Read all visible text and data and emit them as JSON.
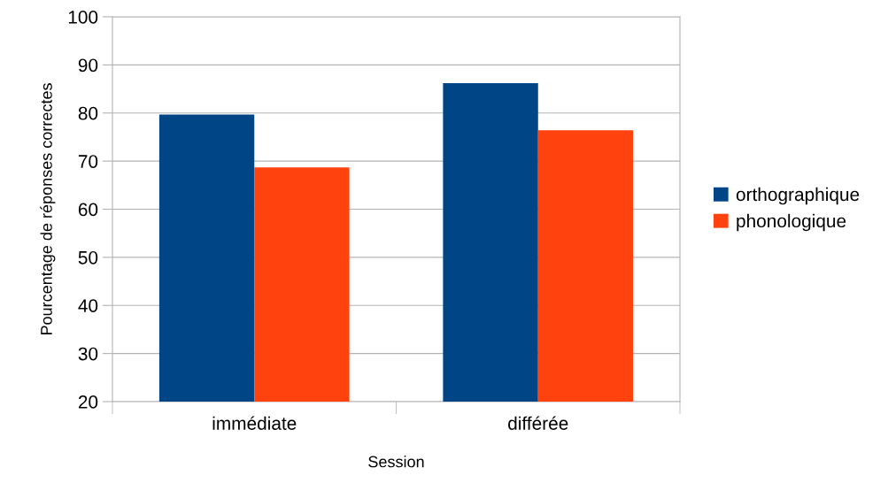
{
  "chart_data": {
    "type": "bar",
    "xlabel": "Session",
    "ylabel": "Pourcentage de réponses correctes",
    "categories": [
      "immédiate",
      "différée"
    ],
    "series": [
      {
        "name": "orthographique",
        "color": "#004586",
        "values": [
          79.7,
          86.2
        ]
      },
      {
        "name": "phonologique",
        "color": "#ff420e",
        "values": [
          68.7,
          76.4
        ]
      }
    ],
    "ylim": [
      20,
      100
    ],
    "yticks": [
      20,
      30,
      40,
      50,
      60,
      70,
      80,
      90,
      100
    ],
    "grid": "y",
    "legend": "right"
  }
}
